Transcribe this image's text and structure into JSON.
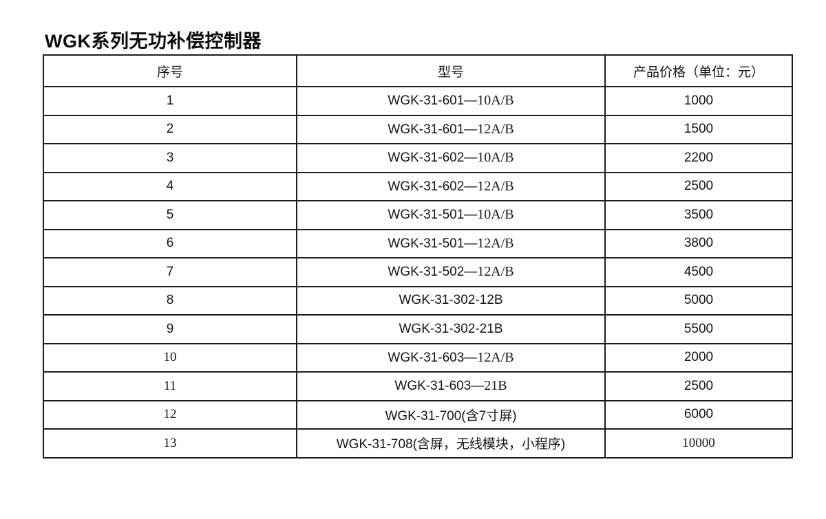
{
  "page": {
    "title": "WGK系列无功补偿控制器"
  },
  "table": {
    "headers": [
      "序号",
      "型号",
      "产品价格（单位：元）"
    ],
    "rows": [
      {
        "no": "1",
        "model_prefix": "WGK-31-601—",
        "model_suffix": "10A/B",
        "price": "1000"
      },
      {
        "no": "2",
        "model_prefix": "WGK-31-601—",
        "model_suffix": "12A/B",
        "price": "1500"
      },
      {
        "no": "3",
        "model_prefix": "WGK-31-602—",
        "model_suffix": "10A/B",
        "price": "2200"
      },
      {
        "no": "4",
        "model_prefix": "WGK-31-602—",
        "model_suffix": "12A/B",
        "price": "2500"
      },
      {
        "no": "5",
        "model_prefix": "WGK-31-501—",
        "model_suffix": "10A/B",
        "price": "3500"
      },
      {
        "no": "6",
        "model_prefix": "WGK-31-501—",
        "model_suffix": "12A/B",
        "price": "3800"
      },
      {
        "no": "7",
        "model_prefix": "WGK-31-502—",
        "model_suffix": "12A/B",
        "price": "4500"
      },
      {
        "no": "8",
        "model_prefix": "WGK-31-302-12B",
        "model_suffix": "",
        "price": "5000"
      },
      {
        "no": "9",
        "model_prefix": "WGK-31-302-21B",
        "model_suffix": "",
        "price": "5500"
      },
      {
        "no": "10",
        "model_prefix": "WGK-31-603—",
        "model_suffix": "12A/B",
        "price": "2000"
      },
      {
        "no": "11",
        "model_prefix": "WGK-31-603—",
        "model_suffix": "21B",
        "price": "2500"
      },
      {
        "no": "12",
        "model_prefix": "WGK-31-700(含7寸屏)",
        "model_suffix": "",
        "price": "6000"
      },
      {
        "no": "13",
        "model_prefix": "WGK-31-708(含屏，无线模块，小程序)",
        "model_suffix": "",
        "price": "10000"
      }
    ],
    "colors": {
      "border": "#1c1c1c",
      "text": "#151515",
      "background": "#ffffff"
    }
  }
}
